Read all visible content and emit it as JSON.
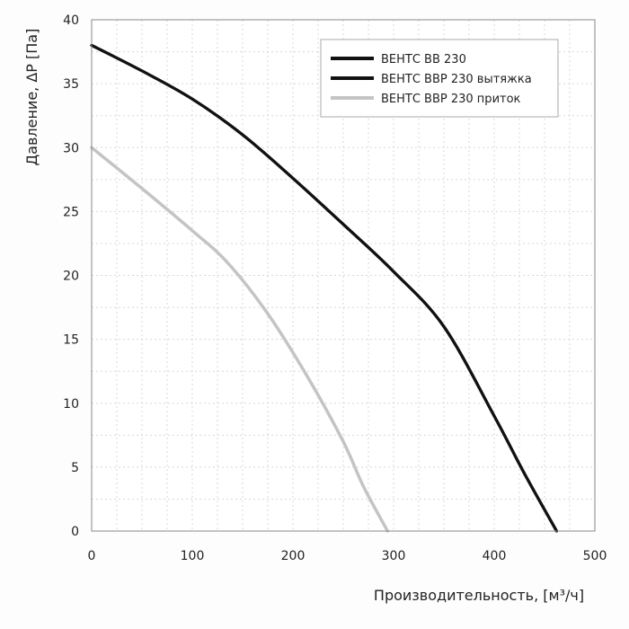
{
  "chart_data": {
    "type": "line",
    "xlabel": "Производительность, [м³/ч]",
    "ylabel": "Давление, ΔP [Па]",
    "xlim": [
      0,
      500
    ],
    "ylim": [
      0,
      40
    ],
    "xticks": [
      0,
      100,
      200,
      300,
      400,
      500
    ],
    "yticks": [
      0,
      5,
      10,
      15,
      20,
      25,
      30,
      35,
      40
    ],
    "grid": true,
    "legend_position": "top-right",
    "series": [
      {
        "name": "ВЕНТС ВВ 230",
        "color": "#111111",
        "x": [
          0,
          50,
          100,
          150,
          200,
          250,
          300,
          350,
          400,
          430,
          462
        ],
        "y": [
          38,
          36,
          33.8,
          31,
          27.6,
          24,
          20.3,
          16,
          9,
          4.5,
          0
        ]
      },
      {
        "name": "ВЕНТС ВВР 230 вытяжка",
        "color": "#111111",
        "x": [
          0,
          50,
          100,
          150,
          200,
          250,
          300,
          350,
          400,
          430,
          462
        ],
        "y": [
          38,
          36,
          33.8,
          31,
          27.6,
          24,
          20.3,
          16,
          9,
          4.5,
          0
        ]
      },
      {
        "name": "ВЕНТС ВВР 230 приток",
        "color": "#c4c4c4",
        "x": [
          0,
          50,
          100,
          135,
          175,
          215,
          250,
          270,
          294
        ],
        "y": [
          30,
          26.8,
          23.5,
          21,
          17,
          12,
          7,
          3.5,
          0
        ]
      }
    ]
  }
}
